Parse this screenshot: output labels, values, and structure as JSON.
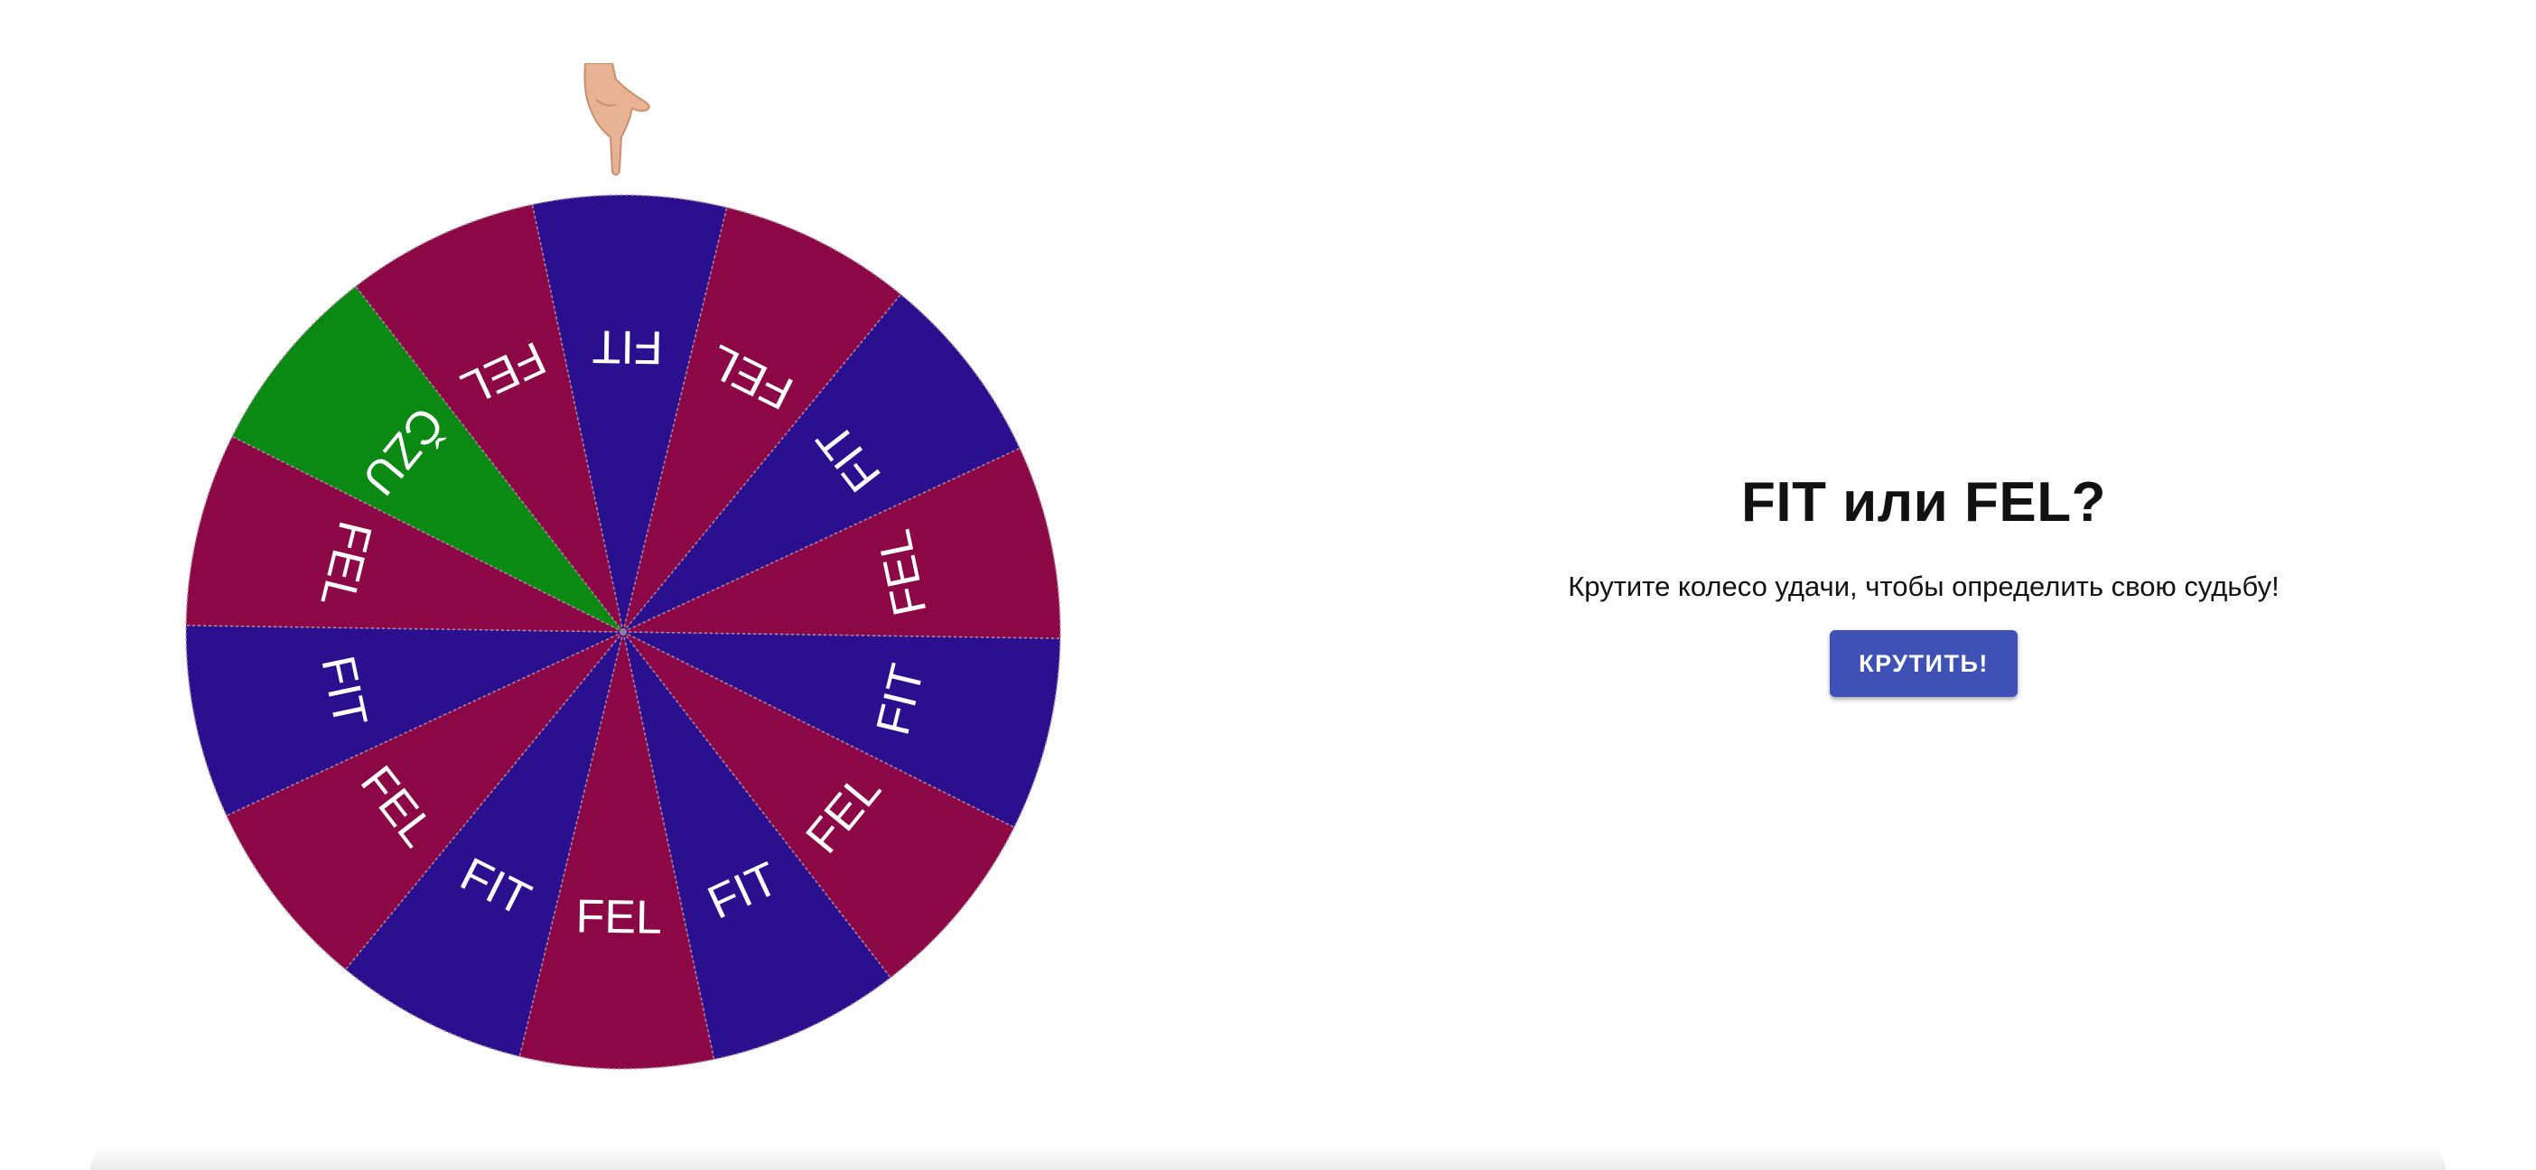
{
  "header": {
    "title": "FIT или FEL?",
    "subtitle": "Крутите колесо удачи, чтобы определить свою судьбу!"
  },
  "actions": {
    "spin_label": "КРУТИТЬ!"
  },
  "colors": {
    "fit": "#2a0f8f",
    "fel": "#8c0745",
    "czu": "#0a8a12",
    "button": "#3f51b5"
  },
  "wheel": {
    "segments": [
      {
        "label": "FIT",
        "color": "#2a0f8f"
      },
      {
        "label": "FEL",
        "color": "#8c0745"
      },
      {
        "label": "FIT",
        "color": "#2a0f8f"
      },
      {
        "label": "FEL",
        "color": "#8c0745"
      },
      {
        "label": "FIT",
        "color": "#2a0f8f"
      },
      {
        "label": "FEL",
        "color": "#8c0745"
      },
      {
        "label": "FIT",
        "color": "#2a0f8f"
      },
      {
        "label": "FEL",
        "color": "#8c0745"
      },
      {
        "label": "FIT",
        "color": "#2a0f8f"
      },
      {
        "label": "FEL",
        "color": "#8c0745"
      },
      {
        "label": "FIT",
        "color": "#2a0f8f"
      },
      {
        "label": "FEL",
        "color": "#8c0745"
      },
      {
        "label": "ČZU",
        "color": "#0a8a12"
      },
      {
        "label": "FEL",
        "color": "#8c0745"
      }
    ],
    "pointer_icon": "pointing-hand-icon"
  }
}
